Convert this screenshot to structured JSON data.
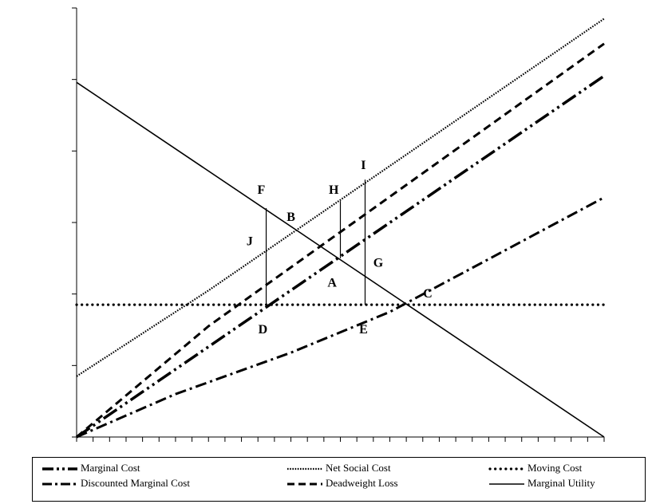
{
  "chart_data": {
    "type": "line",
    "title": "",
    "xlabel": "",
    "ylabel": "",
    "xlim": [
      0,
      32
    ],
    "ylim": [
      0,
      6
    ],
    "x_tick_count": 32,
    "y_tick_count": 6,
    "tick_labels_shown": false,
    "grid": false,
    "legend_position": "bottom",
    "series": [
      {
        "name": "Marginal Cost",
        "style": "long-dash-dot-dot",
        "stroke_width": 3.5,
        "points": [
          [
            0.0,
            0.0
          ],
          [
            32.0,
            5.05
          ]
        ]
      },
      {
        "name": "Net Social Cost",
        "style": "fine-dotted",
        "stroke_width": 2.2,
        "points": [
          [
            0.0,
            0.85
          ],
          [
            8.0,
            2.05
          ],
          [
            32.0,
            5.85
          ]
        ]
      },
      {
        "name": "Moving Cost",
        "style": "heavy-dotted",
        "stroke_width": 3.2,
        "points": [
          [
            0.0,
            1.85
          ],
          [
            32.0,
            1.85
          ]
        ]
      },
      {
        "name": "Discounted Marginal Cost",
        "style": "dash-dot",
        "stroke_width": 3,
        "points": [
          [
            0.0,
            0.0
          ],
          [
            1.0,
            0.1
          ],
          [
            6.0,
            0.6
          ],
          [
            13.0,
            1.18
          ],
          [
            19.0,
            1.75
          ],
          [
            32.0,
            3.35
          ]
        ]
      },
      {
        "name": "Deadweight Loss",
        "style": "dashed",
        "stroke_width": 3,
        "points": [
          [
            0.0,
            0.0
          ],
          [
            8.0,
            1.55
          ],
          [
            32.0,
            5.5
          ]
        ]
      },
      {
        "name": "Marginal Utility",
        "style": "solid",
        "stroke_width": 1.6,
        "points": [
          [
            0.0,
            4.96
          ],
          [
            32.0,
            0.0
          ]
        ]
      }
    ],
    "vertical_segments": [
      {
        "x": 11.5,
        "y1": 1.85,
        "y2": 3.2
      },
      {
        "x": 16.0,
        "y1": 2.5,
        "y2": 3.3
      },
      {
        "x": 17.5,
        "y1": 1.85,
        "y2": 3.6
      }
    ],
    "point_labels": [
      {
        "label": "F",
        "x": 11.2,
        "y": 3.4
      },
      {
        "label": "B",
        "x": 13.0,
        "y": 3.02
      },
      {
        "label": "H",
        "x": 15.6,
        "y": 3.4
      },
      {
        "label": "I",
        "x": 17.4,
        "y": 3.75
      },
      {
        "label": "J",
        "x": 10.5,
        "y": 2.68
      },
      {
        "label": "A",
        "x": 15.5,
        "y": 2.1
      },
      {
        "label": "G",
        "x": 18.3,
        "y": 2.38
      },
      {
        "label": "C",
        "x": 21.3,
        "y": 1.95
      },
      {
        "label": "D",
        "x": 11.3,
        "y": 1.45
      },
      {
        "label": "E",
        "x": 17.4,
        "y": 1.45
      }
    ]
  }
}
